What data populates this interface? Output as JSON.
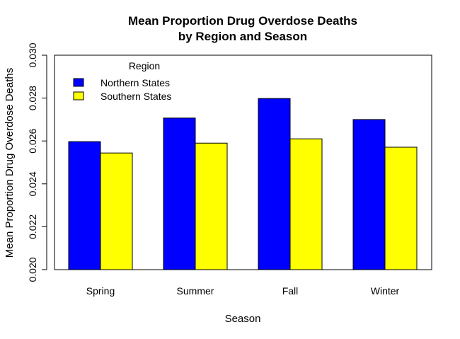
{
  "chart_data": {
    "type": "bar",
    "title": [
      "Mean Proportion Drug Overdose Deaths",
      "by Region and Season"
    ],
    "xlabel": "Season",
    "ylabel": "Mean Proportion Drug Overdose Deaths",
    "categories": [
      "Spring",
      "Summer",
      "Fall",
      "Winter"
    ],
    "series": [
      {
        "name": "Northern States",
        "color": "#0000ff",
        "values": [
          0.02597,
          0.02707,
          0.02798,
          0.027
        ]
      },
      {
        "name": "Southern States",
        "color": "#ffff00",
        "values": [
          0.02544,
          0.0259,
          0.0261,
          0.02571
        ]
      }
    ],
    "ylim": [
      0.02,
      0.03
    ],
    "yticks": [
      "0.020",
      "0.022",
      "0.024",
      "0.026",
      "0.028",
      "0.030"
    ],
    "legend": {
      "title": "Region",
      "position": "top-left"
    },
    "grid": false
  }
}
